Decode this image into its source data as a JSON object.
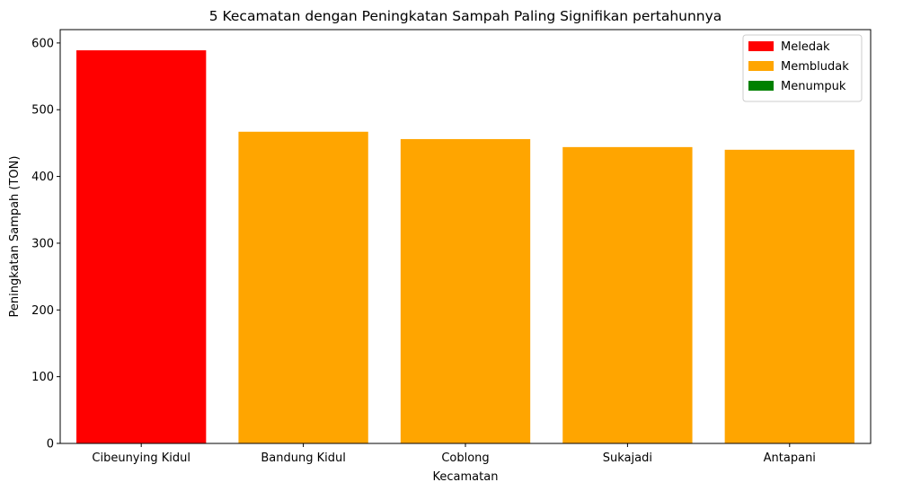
{
  "chart_data": {
    "type": "bar",
    "title": "5 Kecamatan dengan Peningkatan Sampah Paling Signifikan pertahunnya",
    "xlabel": "Kecamatan",
    "ylabel": "Peningkatan Sampah (TON)",
    "categories": [
      "Cibeunying Kidul",
      "Bandung Kidul",
      "Coblong",
      "Sukajadi",
      "Antapani"
    ],
    "values": [
      589,
      467,
      456,
      444,
      440
    ],
    "bar_colors": [
      "#ff0000",
      "#ffa500",
      "#ffa500",
      "#ffa500",
      "#ffa500"
    ],
    "ylim": [
      0,
      620
    ],
    "yticks": [
      0,
      100,
      200,
      300,
      400,
      500,
      600
    ],
    "grid": false,
    "legend": {
      "position": "top-right",
      "entries": [
        {
          "label": "Meledak",
          "color": "#ff0000"
        },
        {
          "label": "Membludak",
          "color": "#ffa500"
        },
        {
          "label": "Menumpuk",
          "color": "#008000"
        }
      ]
    }
  }
}
